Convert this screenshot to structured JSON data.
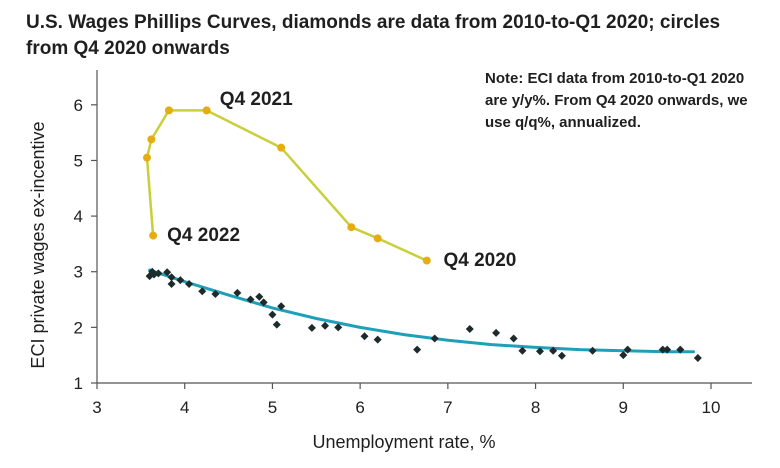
{
  "chart_data": {
    "type": "scatter",
    "title": "U.S. Wages Phillips Curves, diamonds are data from 2010-to-Q1 2020; circles from Q4 2020 onwards",
    "note": "Note: ECI data from 2010-to-Q1 2020 are y/y%.  From Q4 2020 onwards, we use q/q%, annualized.",
    "xlabel": "Unemployment rate, %",
    "ylabel": "ECI private wages ex-incentive",
    "xlim": [
      3,
      10
    ],
    "ylim": [
      1,
      6.5
    ],
    "xticks": [
      "3",
      "4",
      "5",
      "6",
      "7",
      "8",
      "9",
      "10"
    ],
    "yticks": [
      "1",
      "2",
      "3",
      "4",
      "5",
      "6"
    ],
    "grid": false,
    "colors": {
      "diamonds": "#1c2b2b",
      "circles": "#e6ad10",
      "circle_line": "#c9cf3a",
      "fit": "#1da0b8"
    },
    "series": [
      {
        "marker": "diamond",
        "points": [
          [
            3.6,
            2.92
          ],
          [
            3.63,
            3.0
          ],
          [
            3.65,
            2.95
          ],
          [
            3.7,
            2.97
          ],
          [
            3.8,
            2.99
          ],
          [
            3.85,
            2.9
          ],
          [
            3.85,
            2.78
          ],
          [
            3.95,
            2.85
          ],
          [
            4.05,
            2.78
          ],
          [
            4.2,
            2.65
          ],
          [
            4.35,
            2.6
          ],
          [
            4.6,
            2.62
          ],
          [
            4.75,
            2.5
          ],
          [
            4.85,
            2.55
          ],
          [
            4.9,
            2.45
          ],
          [
            5.0,
            2.23
          ],
          [
            5.05,
            2.05
          ],
          [
            5.1,
            2.38
          ],
          [
            5.45,
            1.99
          ],
          [
            5.6,
            2.03
          ],
          [
            5.75,
            2.0
          ],
          [
            6.05,
            1.84
          ],
          [
            6.2,
            1.78
          ],
          [
            6.65,
            1.6
          ],
          [
            6.85,
            1.8
          ],
          [
            7.25,
            1.97
          ],
          [
            7.55,
            1.9
          ],
          [
            7.75,
            1.8
          ],
          [
            7.85,
            1.58
          ],
          [
            8.05,
            1.57
          ],
          [
            8.2,
            1.58
          ],
          [
            8.3,
            1.49
          ],
          [
            8.65,
            1.58
          ],
          [
            9.0,
            1.5
          ],
          [
            9.05,
            1.6
          ],
          [
            9.45,
            1.6
          ],
          [
            9.5,
            1.6
          ],
          [
            9.65,
            1.6
          ],
          [
            9.85,
            1.45
          ]
        ]
      },
      {
        "marker": "circle",
        "connected": true,
        "points": [
          [
            6.76,
            3.2
          ],
          [
            6.2,
            3.6
          ],
          [
            5.9,
            3.8
          ],
          [
            5.1,
            5.23
          ],
          [
            4.25,
            5.9
          ],
          [
            3.82,
            5.9
          ],
          [
            3.62,
            5.38
          ],
          [
            3.57,
            5.05
          ],
          [
            3.64,
            3.65
          ]
        ]
      },
      {
        "type": "line",
        "points": [
          [
            3.6,
            3.03
          ],
          [
            4.0,
            2.82
          ],
          [
            4.5,
            2.58
          ],
          [
            5.0,
            2.35
          ],
          [
            5.5,
            2.16
          ],
          [
            6.0,
            2.0
          ],
          [
            6.5,
            1.87
          ],
          [
            7.0,
            1.77
          ],
          [
            7.5,
            1.69
          ],
          [
            8.0,
            1.64
          ],
          [
            8.5,
            1.6
          ],
          [
            9.0,
            1.58
          ],
          [
            9.5,
            1.56
          ],
          [
            9.8,
            1.56
          ]
        ]
      }
    ],
    "annotations": [
      {
        "text": "Q4 2021",
        "x": 4.4,
        "y": 6.0
      },
      {
        "text": "Q4 2022",
        "x": 3.8,
        "y": 3.55
      },
      {
        "text": "Q4 2020",
        "x": 6.95,
        "y": 3.1
      }
    ]
  }
}
